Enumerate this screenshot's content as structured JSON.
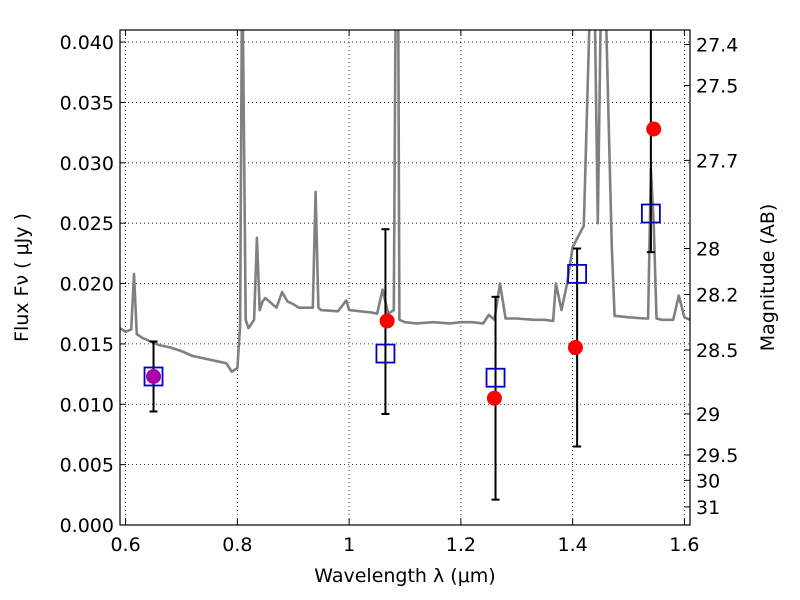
{
  "chart_data": {
    "type": "scatter",
    "title": "",
    "xlabel": "Wavelength  λ (μm)",
    "ylabel": "Flux  Fν  ( μJy )",
    "ylabel_right": "Magnitude (AB)",
    "xlim": [
      0.59,
      1.61
    ],
    "ylim": [
      0.0,
      0.041
    ],
    "grid": true,
    "x_ticks": [
      {
        "value": 0.6,
        "label": "0.6"
      },
      {
        "value": 0.8,
        "label": "0.8"
      },
      {
        "value": 1.0,
        "label": "1"
      },
      {
        "value": 1.2,
        "label": "1.2"
      },
      {
        "value": 1.4,
        "label": "1.4"
      },
      {
        "value": 1.6,
        "label": "1.6"
      }
    ],
    "y_ticks": [
      {
        "value": 0.0,
        "label": "0.000"
      },
      {
        "value": 0.005,
        "label": "0.005"
      },
      {
        "value": 0.01,
        "label": "0.010"
      },
      {
        "value": 0.015,
        "label": "0.015"
      },
      {
        "value": 0.02,
        "label": "0.020"
      },
      {
        "value": 0.025,
        "label": "0.025"
      },
      {
        "value": 0.03,
        "label": "0.030"
      },
      {
        "value": 0.035,
        "label": "0.035"
      },
      {
        "value": 0.04,
        "label": "0.040"
      }
    ],
    "right_ticks": [
      {
        "flux": 0.0398,
        "label": "27.4"
      },
      {
        "flux": 0.0364,
        "label": "27.5"
      },
      {
        "flux": 0.0302,
        "label": "27.7"
      },
      {
        "flux": 0.0229,
        "label": "28"
      },
      {
        "flux": 0.0191,
        "label": "28.2"
      },
      {
        "flux": 0.0145,
        "label": "28.5"
      },
      {
        "flux": 0.0092,
        "label": "29"
      },
      {
        "flux": 0.0058,
        "label": "29.5"
      },
      {
        "flux": 0.0037,
        "label": "30"
      },
      {
        "flux": 0.0015,
        "label": "31"
      }
    ],
    "series": [
      {
        "kind": "line",
        "color": "#808080",
        "x": [
          0.59,
          0.6,
          0.61,
          0.615,
          0.62,
          0.63,
          0.64,
          0.66,
          0.68,
          0.7,
          0.72,
          0.74,
          0.76,
          0.78,
          0.79,
          0.8,
          0.805,
          0.808,
          0.81,
          0.815,
          0.82,
          0.83,
          0.835,
          0.84,
          0.845,
          0.85,
          0.87,
          0.88,
          0.89,
          0.9,
          0.91,
          0.92,
          0.935,
          0.94,
          0.945,
          0.95,
          0.98,
          0.995,
          1.0,
          1.02,
          1.04,
          1.05,
          1.06,
          1.07,
          1.08,
          1.083,
          1.088,
          1.09,
          1.1,
          1.12,
          1.15,
          1.18,
          1.2,
          1.22,
          1.24,
          1.25,
          1.26,
          1.27,
          1.28,
          1.3,
          1.33,
          1.35,
          1.365,
          1.37,
          1.38,
          1.39,
          1.4,
          1.42,
          1.43,
          1.44,
          1.445,
          1.45,
          1.46,
          1.47,
          1.475,
          1.48,
          1.5,
          1.53,
          1.535,
          1.54,
          1.545,
          1.55,
          1.56,
          1.58,
          1.59,
          1.6,
          1.61
        ],
        "y": [
          0.0163,
          0.016,
          0.0162,
          0.0208,
          0.0158,
          0.0155,
          0.0153,
          0.0149,
          0.0147,
          0.0144,
          0.014,
          0.0138,
          0.0136,
          0.0134,
          0.0127,
          0.013,
          0.0165,
          0.0415,
          0.0415,
          0.017,
          0.0163,
          0.017,
          0.0238,
          0.0178,
          0.0185,
          0.0188,
          0.018,
          0.0193,
          0.0185,
          0.0183,
          0.018,
          0.018,
          0.018,
          0.0276,
          0.018,
          0.0178,
          0.0177,
          0.0186,
          0.0178,
          0.0177,
          0.0176,
          0.0175,
          0.0195,
          0.0175,
          0.0178,
          0.0415,
          0.0415,
          0.017,
          0.0168,
          0.0167,
          0.0168,
          0.0167,
          0.0168,
          0.0168,
          0.0167,
          0.0174,
          0.017,
          0.02,
          0.0171,
          0.0171,
          0.017,
          0.017,
          0.0169,
          0.02,
          0.0178,
          0.02,
          0.023,
          0.0248,
          0.0415,
          0.0415,
          0.025,
          0.0415,
          0.0415,
          0.023,
          0.0173,
          0.0173,
          0.0172,
          0.0171,
          0.0171,
          0.0295,
          0.025,
          0.0171,
          0.017,
          0.017,
          0.019,
          0.0172,
          0.017
        ]
      },
      {
        "kind": "points",
        "marker": "filled-circle",
        "color": "#ff0000",
        "x": [
          1.068,
          1.26,
          1.405,
          1.545
        ],
        "y": [
          0.0169,
          0.0105,
          0.0147,
          0.0328
        ]
      },
      {
        "kind": "points",
        "marker": "filled-circle",
        "color": "#aa00aa",
        "x": [
          0.65
        ],
        "y": [
          0.0123
        ]
      },
      {
        "kind": "points",
        "marker": "open-square",
        "color": "#0000cc",
        "x": [
          0.65,
          1.065,
          1.262,
          1.408,
          1.54
        ],
        "y": [
          0.0123,
          0.0142,
          0.0122,
          0.0208,
          0.0258
        ],
        "error_low": [
          0.0094,
          0.0092,
          0.0021,
          0.0065,
          0.0226
        ],
        "error_high": [
          0.0152,
          0.0245,
          0.0189,
          0.0229,
          0.0415
        ]
      }
    ]
  }
}
